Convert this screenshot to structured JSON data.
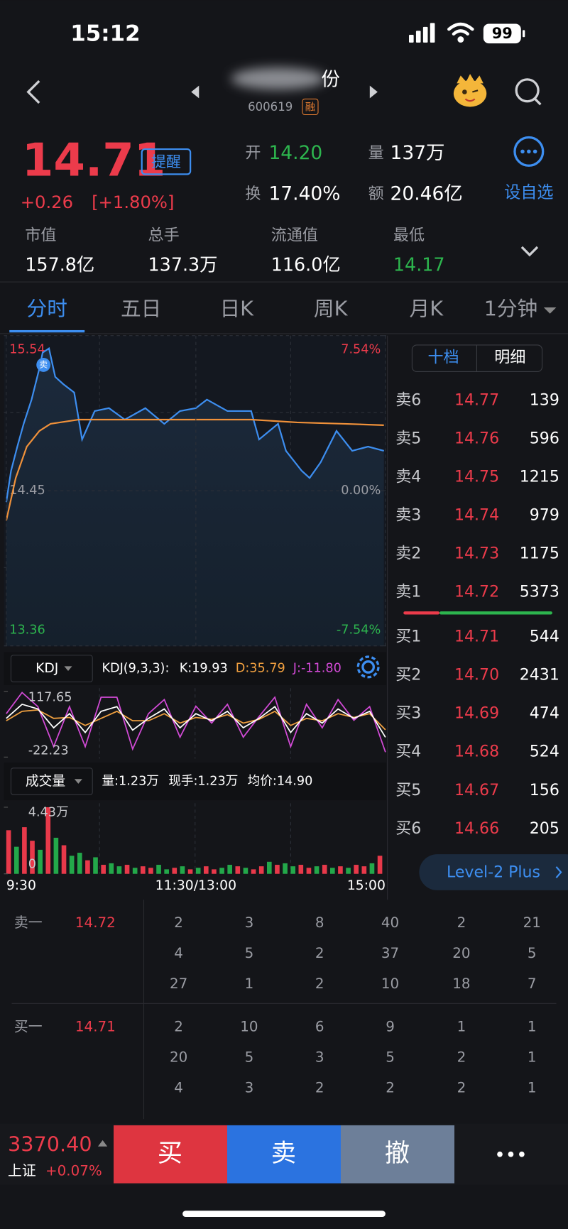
{
  "status_bar": {
    "time": "15:12",
    "battery": "99"
  },
  "header": {
    "name_visible": "份",
    "code": "600619",
    "tag": "融"
  },
  "quote": {
    "price": "14.71",
    "remind": "提醒",
    "change": "+0.26",
    "change_pct": "[+1.80%]",
    "open_label": "开",
    "open": "14.20",
    "volume_label": "量",
    "volume": "137万",
    "turnover_label": "换",
    "turnover": "17.40%",
    "amount_label": "额",
    "amount": "20.46亿",
    "add_watch": "设自选"
  },
  "stats": [
    {
      "label": "市值",
      "value": "157.8亿"
    },
    {
      "label": "总手",
      "value": "137.3万"
    },
    {
      "label": "流通值",
      "value": "116.0亿"
    },
    {
      "label": "最低",
      "value": "14.17"
    }
  ],
  "tabs": [
    "分时",
    "五日",
    "日K",
    "周K",
    "月K",
    "1分钟"
  ],
  "price_chart": {
    "type": "line",
    "marker": "卖",
    "xlim": [
      0,
      240
    ],
    "xticks": [
      {
        "value": 0,
        "label": "9:30"
      },
      {
        "value": 120,
        "label": "11:30/13:00"
      },
      {
        "value": 240,
        "label": "15:00"
      }
    ],
    "ylim": [
      13.36,
      15.54
    ],
    "yticks": [
      15.54,
      14.45,
      13.36
    ],
    "y2lim": [
      -7.54,
      7.54
    ],
    "y2ticks": [
      {
        "value": 7.54,
        "label": "7.54%"
      },
      {
        "value": 0,
        "label": "0.00%"
      },
      {
        "value": -7.54,
        "label": "-7.54%"
      }
    ],
    "series": [
      {
        "color": "#3d8ef0",
        "x": [
          0,
          3,
          7,
          11,
          16,
          21,
          23,
          27,
          31,
          36,
          43,
          48,
          56,
          65,
          75,
          88,
          100,
          110,
          120,
          127,
          140,
          155,
          160,
          172,
          177,
          187,
          192,
          199,
          209,
          219,
          229,
          239
        ],
        "values": [
          14.37,
          14.59,
          14.76,
          14.92,
          15.09,
          15.31,
          15.42,
          15.45,
          15.25,
          15.2,
          15.14,
          14.81,
          15.01,
          15.03,
          14.95,
          15.03,
          14.92,
          15.01,
          15.03,
          15.09,
          15.01,
          15.01,
          14.81,
          14.92,
          14.73,
          14.59,
          14.54,
          14.65,
          14.87,
          14.73,
          14.76,
          14.73
        ]
      },
      {
        "color": "#f0913a",
        "x": [
          0,
          6,
          13,
          21,
          28,
          46,
          95,
          155,
          184,
          214,
          239
        ],
        "values": [
          14.24,
          14.54,
          14.76,
          14.87,
          14.92,
          14.95,
          14.95,
          14.95,
          14.93,
          14.92,
          14.91
        ]
      }
    ]
  },
  "kdj_chart": {
    "type": "line",
    "title": "KDJ",
    "params": "KDJ(9,3,3):",
    "readouts": [
      {
        "label": "K:19.93",
        "color": "#ffffff"
      },
      {
        "label": "D:35.79",
        "color": "#f0a040"
      },
      {
        "label": "J:-11.80",
        "color": "#d24ad6"
      }
    ],
    "ylim": [
      -22.23,
      117.65
    ],
    "yticks": [
      117.65,
      -22.23
    ],
    "x": [
      0,
      10,
      20,
      30,
      40,
      50,
      60,
      70,
      80,
      90,
      100,
      110,
      120,
      130,
      140,
      150,
      160,
      170,
      180,
      190,
      200,
      210,
      220,
      230,
      240
    ],
    "series": [
      {
        "color": "#ffffff",
        "values": [
          60,
          90,
          80,
          40,
          70,
          30,
          75,
          85,
          35,
          60,
          80,
          40,
          70,
          55,
          75,
          40,
          60,
          85,
          30,
          70,
          50,
          80,
          60,
          75,
          19.93
        ]
      },
      {
        "color": "#f0a040",
        "values": [
          55,
          75,
          78,
          60,
          62,
          45,
          60,
          75,
          55,
          55,
          70,
          50,
          62,
          58,
          68,
          50,
          58,
          75,
          45,
          60,
          55,
          70,
          62,
          70,
          35.79
        ]
      },
      {
        "color": "#d24ad6",
        "values": [
          70,
          115,
          85,
          0,
          85,
          0,
          105,
          105,
          -5,
          70,
          100,
          20,
          86,
          50,
          90,
          20,
          64,
          105,
          0,
          90,
          40,
          100,
          56,
          85,
          -11.8
        ]
      }
    ]
  },
  "volume_chart": {
    "type": "bar",
    "title": "成交量",
    "readouts": [
      "量:1.23万",
      "现手:1.23万",
      "均价:14.90"
    ],
    "ylim": [
      0,
      4.43
    ],
    "yticks": [
      {
        "value": 4.43,
        "label": "4.43万"
      },
      0
    ],
    "x": [
      0,
      5,
      10,
      15,
      20,
      25,
      30,
      35,
      40,
      45,
      50,
      55,
      60,
      65,
      70,
      75,
      80,
      85,
      90,
      95,
      100,
      105,
      110,
      115,
      120,
      125,
      130,
      135,
      140,
      145,
      150,
      155,
      160,
      165,
      170,
      175,
      180,
      185,
      190,
      195,
      200,
      205,
      210,
      215,
      220,
      225,
      230,
      235
    ],
    "values": [
      2.9,
      1.8,
      3.1,
      2.2,
      1.6,
      4.43,
      2.4,
      1.9,
      1.2,
      1.4,
      0.9,
      1.1,
      0.6,
      0.7,
      0.5,
      0.6,
      0.4,
      0.5,
      0.4,
      0.6,
      0.3,
      0.4,
      0.5,
      0.3,
      0.4,
      0.5,
      0.3,
      0.4,
      0.6,
      0.5,
      0.4,
      0.3,
      0.5,
      0.8,
      0.6,
      0.7,
      0.5,
      0.6,
      0.4,
      0.5,
      0.6,
      0.4,
      0.5,
      0.4,
      0.6,
      0.5,
      0.7,
      1.2
    ],
    "colors": [
      "#e8394a",
      "#23a84a",
      "#e8394a",
      "#e8394a",
      "#23a84a",
      "#e8394a",
      "#23a84a",
      "#e8394a",
      "#23a84a",
      "#23a84a",
      "#e8394a",
      "#23a84a",
      "#e8394a",
      "#23a84a",
      "#23a84a",
      "#e8394a",
      "#23a84a",
      "#e8394a",
      "#e8394a",
      "#23a84a",
      "#23a84a",
      "#e8394a",
      "#23a84a",
      "#e8394a",
      "#23a84a",
      "#e8394a",
      "#e8394a",
      "#23a84a",
      "#23a84a",
      "#e8394a",
      "#23a84a",
      "#e8394a",
      "#e8394a",
      "#23a84a",
      "#e8394a",
      "#23a84a",
      "#23a84a",
      "#e8394a",
      "#e8394a",
      "#23a84a",
      "#e8394a",
      "#23a84a",
      "#e8394a",
      "#23a84a",
      "#e8394a",
      "#e8394a",
      "#23a84a",
      "#e8394a"
    ]
  },
  "order_book": {
    "tabs": [
      "十档",
      "明细"
    ],
    "sells": [
      {
        "label": "卖6",
        "price": "14.77",
        "volume": "139"
      },
      {
        "label": "卖5",
        "price": "14.76",
        "volume": "596"
      },
      {
        "label": "卖4",
        "price": "14.75",
        "volume": "1215"
      },
      {
        "label": "卖3",
        "price": "14.74",
        "volume": "979"
      },
      {
        "label": "卖2",
        "price": "14.73",
        "volume": "1175"
      },
      {
        "label": "卖1",
        "price": "14.72",
        "volume": "5373"
      }
    ],
    "buys": [
      {
        "label": "买1",
        "price": "14.71",
        "volume": "544"
      },
      {
        "label": "买2",
        "price": "14.70",
        "volume": "2431"
      },
      {
        "label": "买3",
        "price": "14.69",
        "volume": "474"
      },
      {
        "label": "买4",
        "price": "14.68",
        "volume": "524"
      },
      {
        "label": "买5",
        "price": "14.67",
        "volume": "156"
      },
      {
        "label": "买6",
        "price": "14.66",
        "volume": "205"
      }
    ],
    "level2": "Level-2 Plus"
  },
  "queue": [
    {
      "label": "卖一",
      "price": "14.72",
      "rows": [
        [
          2,
          3,
          8,
          40,
          2,
          21
        ],
        [
          4,
          5,
          2,
          37,
          20,
          5
        ],
        [
          27,
          1,
          2,
          10,
          18,
          7
        ]
      ]
    },
    {
      "label": "买一",
      "price": "14.71",
      "rows": [
        [
          2,
          10,
          6,
          9,
          1,
          1
        ],
        [
          20,
          5,
          3,
          5,
          2,
          1
        ],
        [
          4,
          3,
          2,
          2,
          2,
          1
        ]
      ]
    }
  ],
  "bottom_bar": {
    "index_value": "3370.40",
    "index_name": "上证",
    "index_change": "+0.07%",
    "buttons": [
      "买",
      "卖",
      "撤"
    ]
  }
}
